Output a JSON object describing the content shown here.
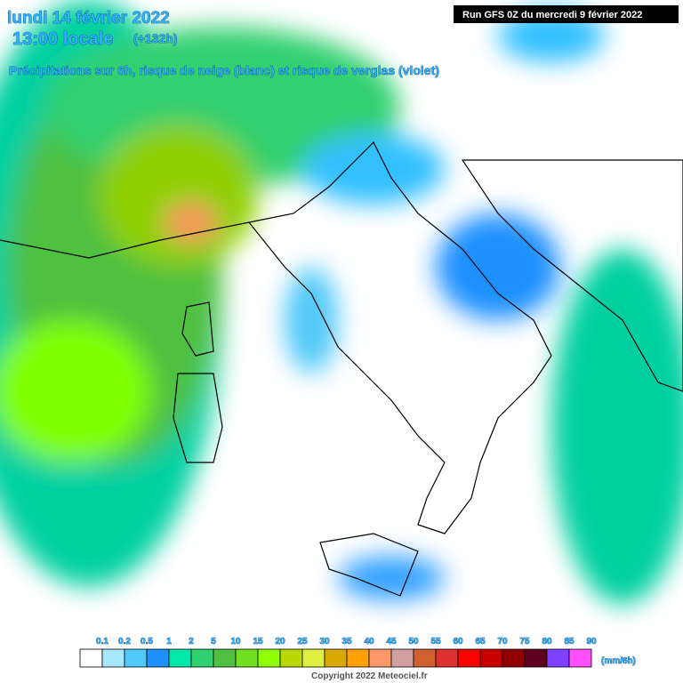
{
  "header": {
    "date": "lundi 14 février 2022",
    "time": "13:00 locale",
    "lead": "(+132h)",
    "subtitle": "Précipitations sur 6h, risque de neige (blanc) et risque de verglas (violet)",
    "run": "Run GFS 0Z du mercredi 9 février 2022"
  },
  "legend": {
    "labels": [
      0.1,
      0.2,
      0.5,
      1,
      2,
      5,
      10,
      15,
      20,
      25,
      30,
      35,
      40,
      45,
      50,
      55,
      60,
      65,
      70,
      75,
      80,
      85,
      90
    ],
    "colors": [
      "#ffffff",
      "#a8e8ff",
      "#50c8f8",
      "#1e90ff",
      "#00e8a8",
      "#30d070",
      "#50c040",
      "#70e020",
      "#90ff00",
      "#b8d800",
      "#e0f040",
      "#d8a800",
      "#ffa000",
      "#ff9868",
      "#d0a0a0",
      "#d06030",
      "#e03030",
      "#ff0000",
      "#c80000",
      "#900000",
      "#600020",
      "#8040ff",
      "#ff50ff"
    ],
    "unit": "(mm/6h)"
  },
  "footer": {
    "copyright": "Copyright 2022 Meteociel.fr"
  }
}
